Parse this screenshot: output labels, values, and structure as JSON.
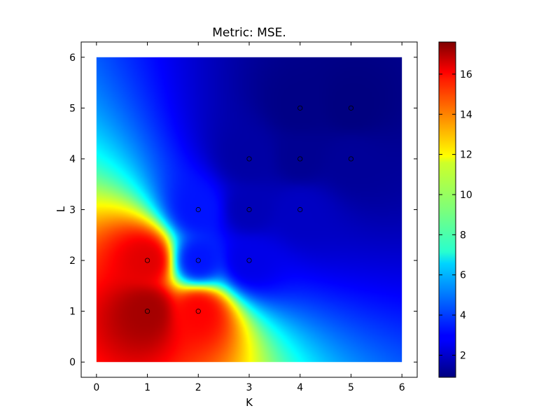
{
  "chart_data": {
    "type": "heatmap",
    "title": "Metric: MSE.",
    "xlabel": "K",
    "ylabel": "L",
    "xlim": [
      -0.3,
      6.3
    ],
    "ylim": [
      -0.3,
      6.3
    ],
    "x_ticks": [
      0,
      1,
      2,
      3,
      4,
      5,
      6
    ],
    "y_ticks": [
      0,
      1,
      2,
      3,
      4,
      5,
      6
    ],
    "field_extent": [
      0,
      6,
      0,
      6
    ],
    "colormap": "jet",
    "colorbar": {
      "min": 0.9,
      "max": 17.6,
      "ticks": [
        2,
        4,
        6,
        8,
        10,
        12,
        14,
        16
      ]
    },
    "points": [
      {
        "x": 1,
        "y": 1,
        "value": 17.0
      },
      {
        "x": 2,
        "y": 1,
        "value": 15.5
      },
      {
        "x": 1,
        "y": 2,
        "value": 16.0
      },
      {
        "x": 2,
        "y": 2,
        "value": 3.3
      },
      {
        "x": 3,
        "y": 2,
        "value": 2.6
      },
      {
        "x": 2,
        "y": 3,
        "value": 3.3
      },
      {
        "x": 3,
        "y": 3,
        "value": 1.8
      },
      {
        "x": 4,
        "y": 3,
        "value": 2.0
      },
      {
        "x": 3,
        "y": 4,
        "value": 1.5
      },
      {
        "x": 4,
        "y": 4,
        "value": 1.2
      },
      {
        "x": 5,
        "y": 4,
        "value": 1.3
      },
      {
        "x": 4,
        "y": 5,
        "value": 1.0
      },
      {
        "x": 5,
        "y": 5,
        "value": 0.9
      }
    ],
    "grid": false
  }
}
